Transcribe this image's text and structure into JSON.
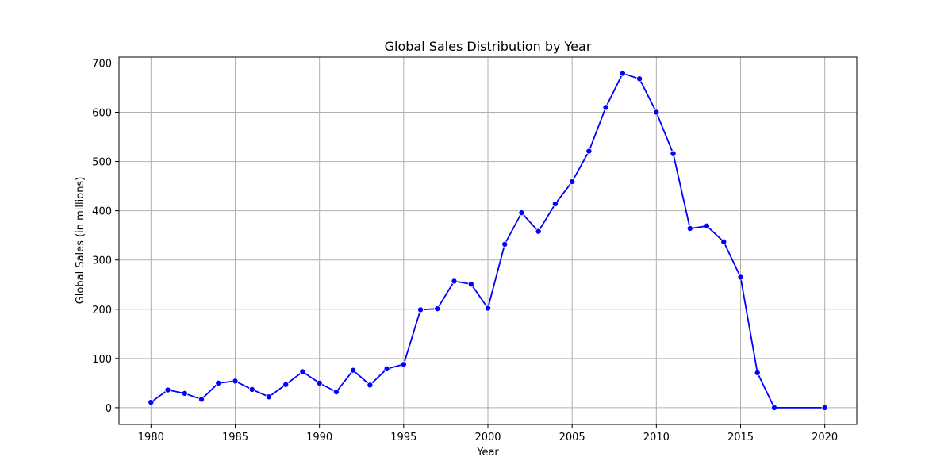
{
  "chart_data": {
    "type": "line",
    "title": "Global Sales Distribution by Year",
    "xlabel": "Year",
    "ylabel": "Global Sales (in millions)",
    "xlim": [
      1978.1,
      2021.9
    ],
    "ylim": [
      -34,
      712
    ],
    "xticks": [
      1980,
      1985,
      1990,
      1995,
      2000,
      2005,
      2010,
      2015,
      2020
    ],
    "yticks": [
      0,
      100,
      200,
      300,
      400,
      500,
      600,
      700
    ],
    "grid": true,
    "color": "#0000ff",
    "marker": "circle",
    "x": [
      1980,
      1981,
      1982,
      1983,
      1984,
      1985,
      1986,
      1987,
      1988,
      1989,
      1990,
      1991,
      1992,
      1993,
      1994,
      1995,
      1996,
      1997,
      1998,
      1999,
      2000,
      2001,
      2002,
      2003,
      2004,
      2005,
      2006,
      2007,
      2008,
      2009,
      2010,
      2011,
      2012,
      2013,
      2014,
      2015,
      2016,
      2017,
      2020
    ],
    "y": [
      11,
      36,
      29,
      17,
      50,
      54,
      37,
      22,
      47,
      73,
      50,
      32,
      76,
      46,
      79,
      88,
      199,
      201,
      257,
      251,
      202,
      332,
      396,
      358,
      414,
      459,
      521,
      610,
      679,
      668,
      600,
      516,
      364,
      369,
      337,
      265,
      71,
      0,
      0
    ]
  }
}
